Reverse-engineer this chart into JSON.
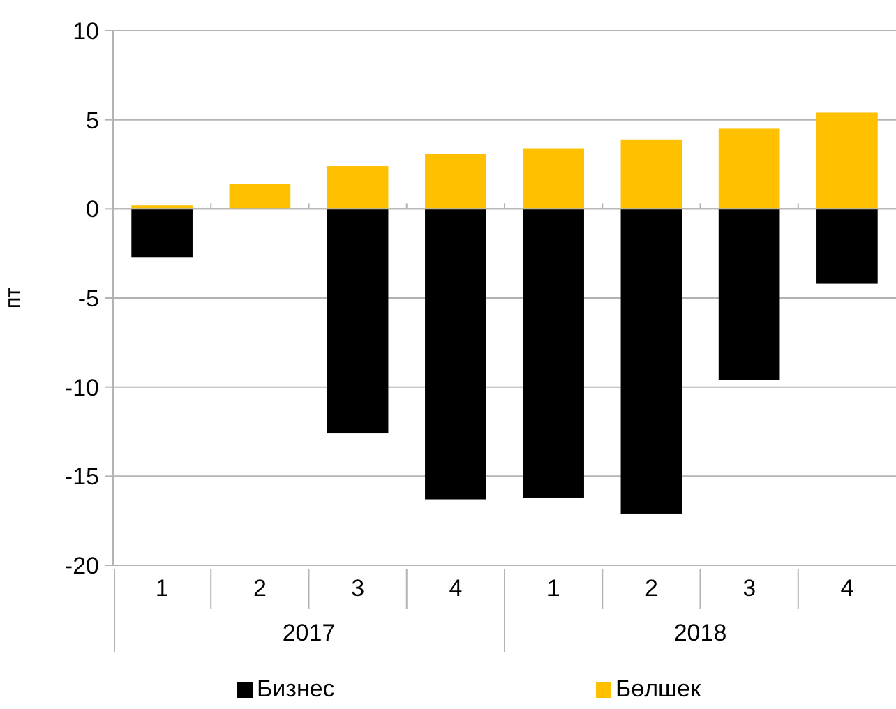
{
  "chart_data": {
    "type": "bar",
    "stacked": true,
    "ylabel": "пт",
    "categories": [
      "1",
      "2",
      "3",
      "4",
      "1",
      "2",
      "3",
      "4"
    ],
    "annotations": [
      "2017",
      "2018"
    ],
    "series": [
      {
        "name": "Бизнес",
        "color": "#000000",
        "values": [
          -2.7,
          null,
          -12.6,
          -16.3,
          -16.2,
          -17.1,
          -9.6,
          -4.2
        ]
      },
      {
        "name": "Бөлшек",
        "color": "#ffc000",
        "values": [
          0.2,
          1.4,
          2.4,
          3.1,
          3.4,
          3.9,
          4.5,
          5.4
        ]
      }
    ],
    "ylim": [
      -20,
      10
    ],
    "yticks": [
      -20,
      -15,
      -10,
      -5,
      0,
      5,
      10
    ],
    "grid": "y",
    "legend": "bottom"
  }
}
